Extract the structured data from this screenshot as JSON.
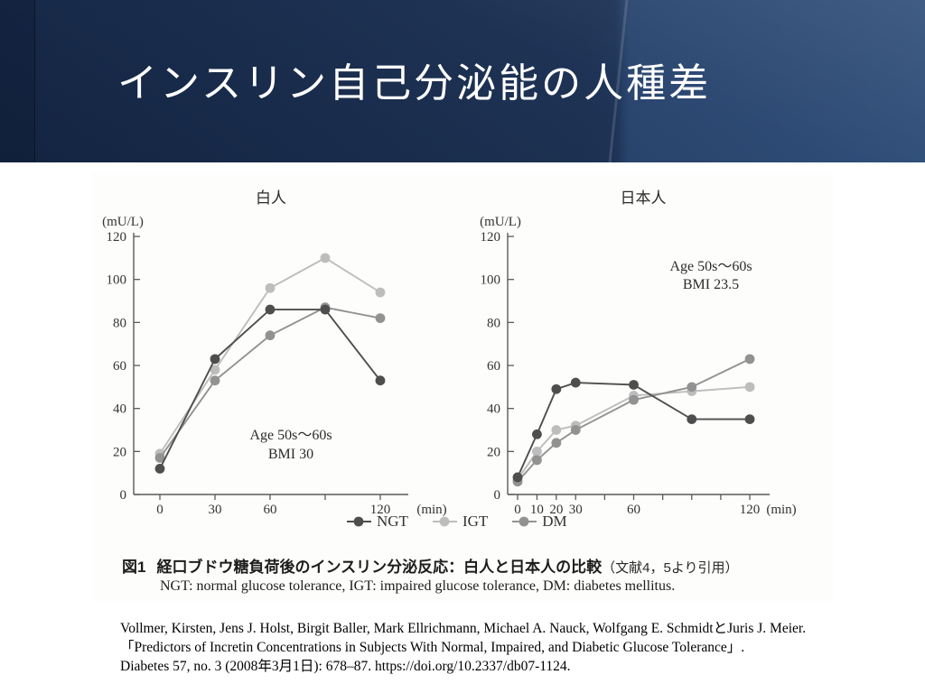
{
  "slide": {
    "title": "インスリン自己分泌能の人種差"
  },
  "figure": {
    "caption_label": "図1",
    "caption_main": "経口ブドウ糖負荷後のインスリン分泌反応：白人と日本人の比較",
    "caption_source": "（文献4，5より引用）",
    "caption_sub": "NGT: normal glucose tolerance, IGT: impaired glucose tolerance, DM: diabetes mellitus.",
    "legend": [
      {
        "label": "NGT",
        "color": "#4e4e4e"
      },
      {
        "label": "IGT",
        "color": "#bdbdbd"
      },
      {
        "label": "DM",
        "color": "#929292"
      }
    ],
    "axis_color": "#5a5a5a",
    "text_color": "#333333"
  },
  "chart_data": [
    {
      "type": "line",
      "title": "白人",
      "ylabel": "(mU/L)",
      "xlabel": "(min)",
      "annotation": [
        "Age 50s～60s",
        "BMI 30"
      ],
      "x": [
        0,
        30,
        60,
        90,
        120
      ],
      "xticks": [
        {
          "v": 0,
          "l": "0"
        },
        {
          "v": 30,
          "l": "30"
        },
        {
          "v": 60,
          "l": "60"
        },
        {
          "v": 90,
          "l": ""
        },
        {
          "v": 120,
          "l": "120"
        }
      ],
      "yticks": [
        0,
        20,
        40,
        60,
        80,
        100,
        120
      ],
      "xlim": [
        0,
        120
      ],
      "ylim": [
        0,
        120
      ],
      "series": [
        {
          "name": "NGT",
          "color": "#4e4e4e",
          "values": [
            12,
            63,
            86,
            86,
            53
          ]
        },
        {
          "name": "IGT",
          "color": "#bdbdbd",
          "values": [
            19,
            58,
            96,
            110,
            94
          ]
        },
        {
          "name": "DM",
          "color": "#929292",
          "values": [
            17,
            53,
            74,
            87,
            82
          ]
        }
      ]
    },
    {
      "type": "line",
      "title": "日本人",
      "ylabel": "(mU/L)",
      "xlabel": "(min)",
      "annotation": [
        "Age 50s～60s",
        "BMI 23.5"
      ],
      "x": [
        0,
        10,
        20,
        30,
        60,
        90,
        120
      ],
      "xticks": [
        {
          "v": 0,
          "l": "0"
        },
        {
          "v": 10,
          "l": "10"
        },
        {
          "v": 20,
          "l": "20"
        },
        {
          "v": 30,
          "l": "30"
        },
        {
          "v": 45,
          "l": ""
        },
        {
          "v": 60,
          "l": "60"
        },
        {
          "v": 75,
          "l": ""
        },
        {
          "v": 90,
          "l": ""
        },
        {
          "v": 105,
          "l": ""
        },
        {
          "v": 120,
          "l": "120"
        }
      ],
      "yticks": [
        0,
        20,
        40,
        60,
        80,
        100,
        120
      ],
      "xlim": [
        0,
        120
      ],
      "ylim": [
        0,
        120
      ],
      "series": [
        {
          "name": "NGT",
          "color": "#4e4e4e",
          "values": [
            8,
            28,
            49,
            52,
            51,
            35,
            35
          ]
        },
        {
          "name": "IGT",
          "color": "#bdbdbd",
          "values": [
            7,
            20,
            30,
            32,
            46,
            48,
            50
          ]
        },
        {
          "name": "DM",
          "color": "#929292",
          "values": [
            6,
            16,
            24,
            30,
            44,
            50,
            63
          ]
        }
      ]
    }
  ],
  "citation": {
    "line1": "Vollmer, Kirsten, Jens J. Holst, Birgit Baller, Mark Ellrichmann, Michael A. Nauck, Wolfgang E. SchmidtとJuris J. Meier.",
    "line2": "「Predictors of Incretin Concentrations in Subjects With Normal, Impaired, and Diabetic Glucose Tolerance」.",
    "line3": "Diabetes 57, no. 3 (2008年3月1日): 678–87. https://doi.org/10.2337/db07-1124."
  }
}
